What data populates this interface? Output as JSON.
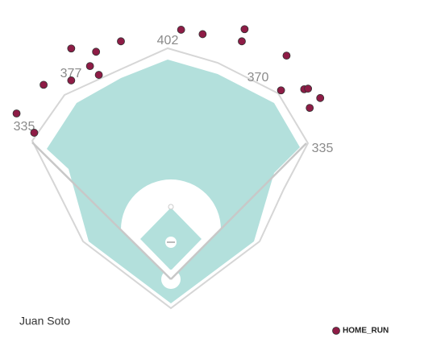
{
  "chart_data": {
    "type": "scatter",
    "title": "Juan Soto",
    "field_distances": {
      "left": "335",
      "left_center": "377",
      "center": "402",
      "right_center": "370",
      "right": "335"
    },
    "xlim": [
      -310,
      496
    ],
    "ylim": [
      -114,
      507
    ],
    "series": [
      {
        "name": "HOME_RUN",
        "color": "#8e1c46",
        "x": [
          -280,
          -248,
          -231,
          -181,
          -181,
          -147,
          -136,
          -131,
          -91,
          18,
          57,
          133,
          128,
          209,
          199,
          241,
          248,
          270,
          251
        ],
        "y": [
          301,
          266,
          353,
          419,
          361,
          387,
          413,
          371,
          432,
          453,
          445,
          454,
          432,
          406,
          343,
          345,
          346,
          329,
          311
        ]
      }
    ]
  }
}
